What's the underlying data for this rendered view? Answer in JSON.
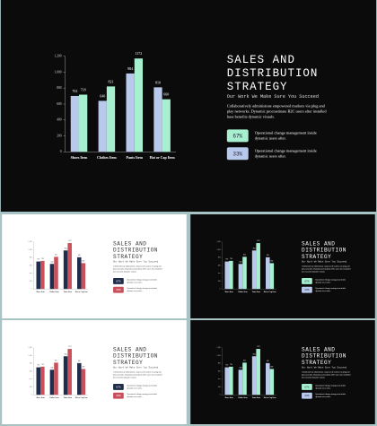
{
  "chart_data": {
    "type": "bar",
    "categories": [
      "Shoes Item",
      "Clothes Item",
      "Pants Item",
      "Hat or Cap Item"
    ],
    "series": [
      {
        "color": "#b9c9ec",
        "values": [
          702,
          640,
          984,
          810
        ]
      },
      {
        "color": "#a6efcf",
        "values": [
          718,
          821,
          1172,
          660
        ]
      }
    ],
    "ylim": [
      0,
      1200
    ],
    "yticks": [
      0,
      200,
      400,
      600,
      800,
      {
        "value": 1000,
        "label": "1,000"
      },
      {
        "value": 1200,
        "label": "1,200"
      }
    ],
    "grid": false
  },
  "slide": {
    "title_lines": [
      "SALES AND",
      "DISTRIBUTION",
      "STRATEGY"
    ],
    "subtitle": "Our Work We Make Sure You Succeed",
    "body": "Collaboratively administrate empowered markets via plug and play networks. Dynamic procrastinate B2C users after installed base benefits dynamic visuals.",
    "stats": [
      {
        "value": "67%",
        "text": "Operational change management inside dynamic users after."
      },
      {
        "value": "33%",
        "text": "Operational change management inside dynamic users after."
      }
    ]
  },
  "variants": [
    {
      "background": "#0b0b0b",
      "text_color": "#ffffff",
      "colors": [
        "#b9c9ec",
        "#a6efcf"
      ],
      "stat_colors": [
        "#a6efcf",
        "#b9c9ec"
      ]
    },
    {
      "background": "#ffffff",
      "text_color": "#333333",
      "colors": [
        "#1f2d4a",
        "#c9505b"
      ],
      "stat_colors": [
        "#1f2d4a",
        "#c9505b"
      ]
    },
    {
      "background": "#0b0b0b",
      "text_color": "#ffffff",
      "colors": [
        "#b9c9ec",
        "#a6efcf"
      ],
      "stat_colors": [
        "#a6efcf",
        "#b9c9ec"
      ]
    },
    {
      "background": "#ffffff",
      "text_color": "#333333",
      "colors": [
        "#1f2d4a",
        "#c9505b"
      ],
      "stat_colors": [
        "#1f2d4a",
        "#c9505b"
      ]
    },
    {
      "background": "#0b0b0b",
      "text_color": "#ffffff",
      "colors": [
        "#b9c9ec",
        "#a6efcf"
      ],
      "stat_colors": [
        "#a6efcf",
        "#b9c9ec"
      ]
    }
  ]
}
